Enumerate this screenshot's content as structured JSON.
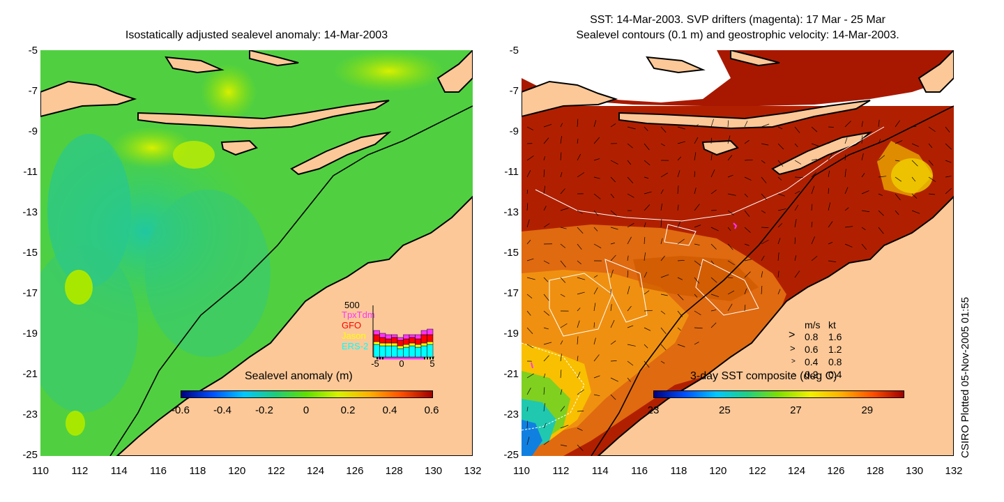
{
  "left": {
    "title": "Isostatically adjusted sealevel anomaly: 14-Mar-2003",
    "colorbar_title": "Sealevel anomaly (m)",
    "colorbar_ticks": [
      "-0.6",
      "-0.4",
      "-0.2",
      "0",
      "0.2",
      "0.4",
      "0.6"
    ],
    "colorbar_colors": [
      "#00007f",
      "#0050ff",
      "#00c8ff",
      "#1ecc7a",
      "#60e000",
      "#d7f200",
      "#ffb000",
      "#ff5000",
      "#a00000"
    ],
    "histogram": {
      "max_label": "500",
      "series": [
        {
          "name": "TpxTdm",
          "color": "#ff33ff"
        },
        {
          "name": "GFO",
          "color": "#ff0000"
        },
        {
          "name": "Jason",
          "color": "#ffff00"
        },
        {
          "name": "ERS-2",
          "color": "#00ffff"
        }
      ],
      "x_ticks": [
        "-5",
        "0",
        "5"
      ]
    }
  },
  "right": {
    "title_line1": "SST: 14-Mar-2003. SVP drifters (magenta): 17 Mar - 25 Mar",
    "title_line2": "Sealevel contours (0.1 m) and geostrophic velocity: 14-Mar-2003.",
    "colorbar_title": "3-day SST composite (deg C)",
    "colorbar_ticks": [
      "23",
      "25",
      "27",
      "29"
    ],
    "colorbar_colors": [
      "#00007f",
      "#0050ff",
      "#00c8ff",
      "#20d080",
      "#80e000",
      "#f0f000",
      "#ffb000",
      "#ff5000",
      "#a00000"
    ],
    "velocity_legend": {
      "header_ms": "m/s",
      "header_kt": "kt",
      "rows": [
        {
          "ms": "0.8",
          "kt": "1.6"
        },
        {
          "ms": "0.6",
          "kt": "1.2"
        },
        {
          "ms": "0.4",
          "kt": "0.8"
        },
        {
          "ms": "0.2",
          "kt": "0.4"
        }
      ]
    }
  },
  "axes": {
    "y_ticks": [
      "-5",
      "-7",
      "-9",
      "-11",
      "-13",
      "-15",
      "-17",
      "-19",
      "-21",
      "-23",
      "-25"
    ],
    "x_ticks": [
      "110",
      "112",
      "114",
      "116",
      "118",
      "120",
      "122",
      "124",
      "126",
      "128",
      "130",
      "132"
    ]
  },
  "credit": "CSIRO Plotted 05-Nov-2005 01:55",
  "colors": {
    "land": "#fcc898",
    "coast": "#000000"
  }
}
